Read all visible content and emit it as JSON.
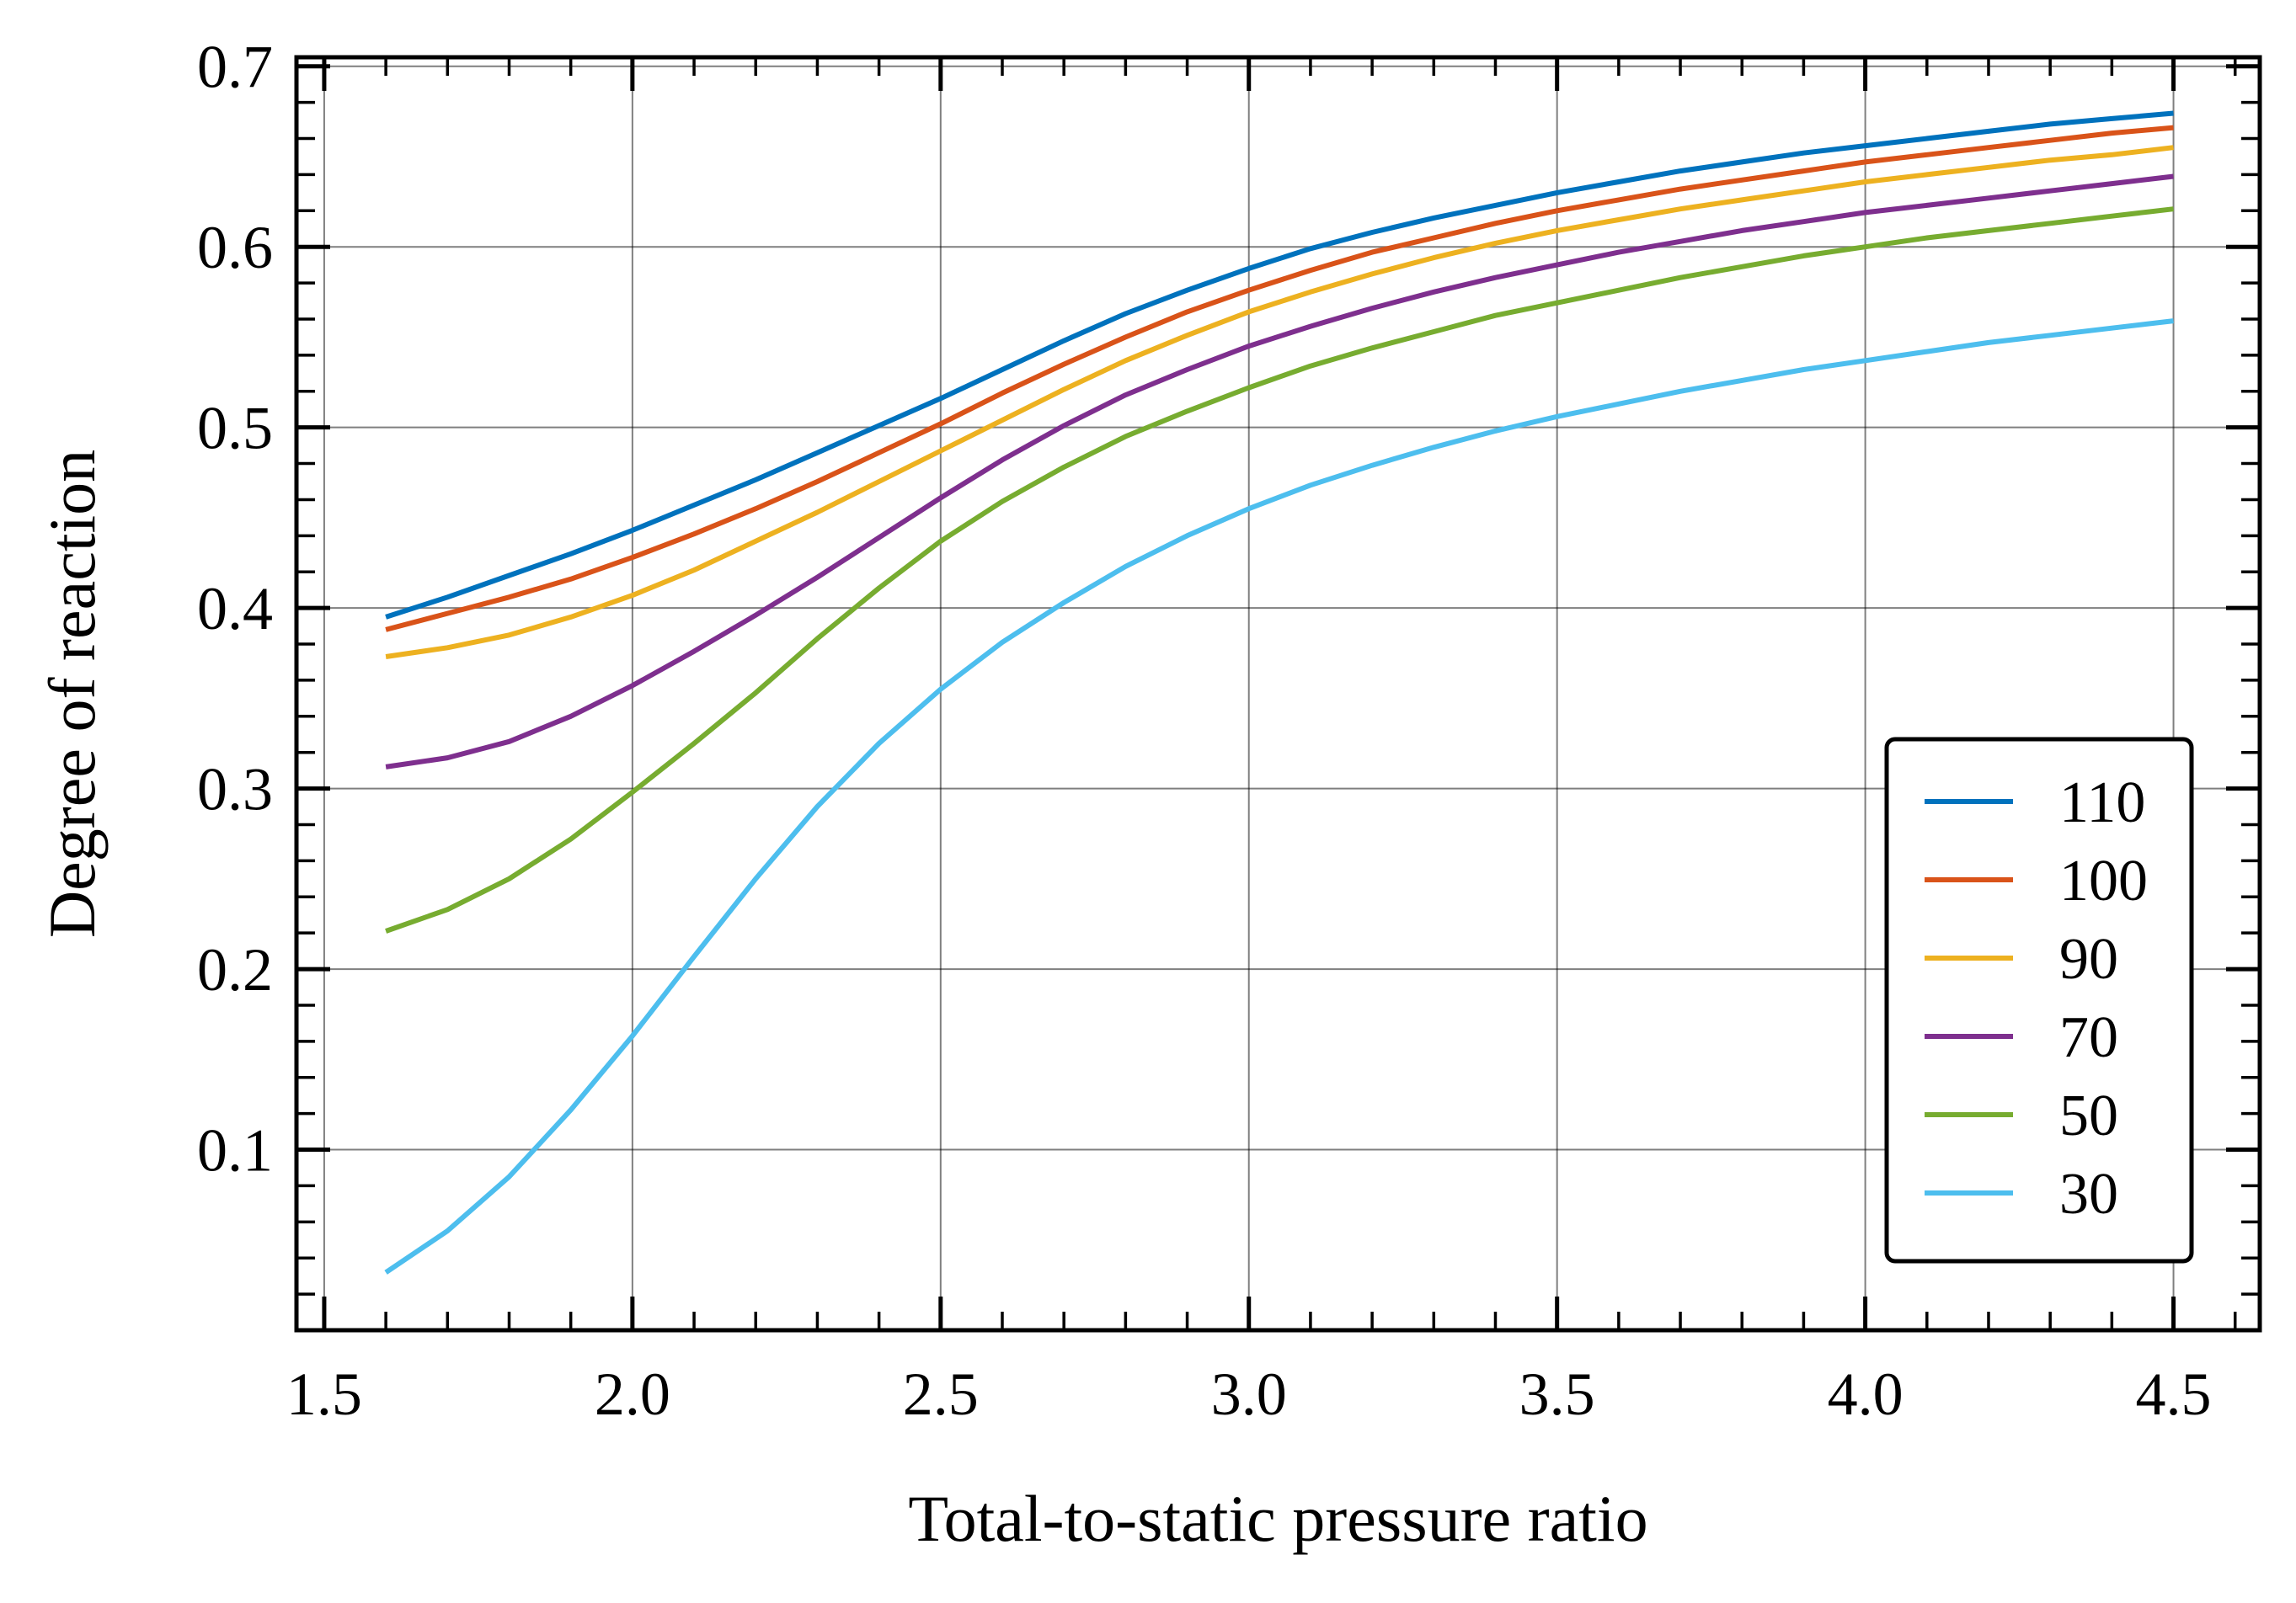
{
  "chart_data": {
    "type": "line",
    "title": "",
    "xlabel": "Total-to-static pressure ratio",
    "ylabel": "Degree of reaction",
    "xlim": [
      1.455,
      4.64
    ],
    "ylim": [
      0.0,
      0.705
    ],
    "xticks": [
      "1.5",
      "2.0",
      "2.5",
      "3.0",
      "3.5",
      "4.0",
      "4.5"
    ],
    "yticks": [
      "0.1",
      "0.2",
      "0.3",
      "0.4",
      "0.5",
      "0.6",
      "0.7"
    ],
    "grid": true,
    "legend_position": "lower-right",
    "x": [
      1.6,
      1.7,
      1.8,
      1.9,
      2.0,
      2.1,
      2.2,
      2.3,
      2.4,
      2.5,
      2.6,
      2.7,
      2.8,
      2.9,
      3.0,
      3.1,
      3.2,
      3.3,
      3.4,
      3.5,
      3.6,
      3.7,
      3.8,
      3.9,
      4.0,
      4.1,
      4.2,
      4.3,
      4.4,
      4.5
    ],
    "series": [
      {
        "name": "110",
        "color": "#0072bd",
        "values": [
          0.395,
          0.406,
          0.418,
          0.43,
          0.443,
          0.457,
          0.471,
          0.486,
          0.501,
          0.516,
          0.532,
          0.548,
          0.563,
          0.576,
          0.588,
          0.599,
          0.608,
          0.616,
          0.623,
          0.63,
          0.636,
          0.642,
          0.647,
          0.652,
          0.656,
          0.66,
          0.664,
          0.668,
          0.671,
          0.674
        ]
      },
      {
        "name": "100",
        "color": "#d95319",
        "values": [
          0.388,
          0.397,
          0.406,
          0.416,
          0.428,
          0.441,
          0.455,
          0.47,
          0.486,
          0.502,
          0.519,
          0.535,
          0.55,
          0.564,
          0.576,
          0.587,
          0.597,
          0.605,
          0.613,
          0.62,
          0.626,
          0.632,
          0.637,
          0.642,
          0.647,
          0.651,
          0.655,
          0.659,
          0.663,
          0.666
        ]
      },
      {
        "name": "90",
        "color": "#edb120",
        "values": [
          0.373,
          0.378,
          0.385,
          0.395,
          0.407,
          0.421,
          0.437,
          0.453,
          0.47,
          0.487,
          0.504,
          0.521,
          0.537,
          0.551,
          0.564,
          0.575,
          0.585,
          0.594,
          0.602,
          0.609,
          0.615,
          0.621,
          0.626,
          0.631,
          0.636,
          0.64,
          0.644,
          0.648,
          0.651,
          0.655
        ]
      },
      {
        "name": "70",
        "color": "#7e2f8e",
        "values": [
          0.312,
          0.317,
          0.326,
          0.34,
          0.357,
          0.376,
          0.396,
          0.417,
          0.439,
          0.461,
          0.482,
          0.501,
          0.518,
          0.532,
          0.545,
          0.556,
          0.566,
          0.575,
          0.583,
          0.59,
          0.597,
          0.603,
          0.609,
          0.614,
          0.619,
          0.623,
          0.627,
          0.631,
          0.635,
          0.639
        ]
      },
      {
        "name": "50",
        "color": "#77ac30",
        "values": [
          0.221,
          0.233,
          0.25,
          0.272,
          0.298,
          0.325,
          0.353,
          0.383,
          0.411,
          0.437,
          0.459,
          0.478,
          0.495,
          0.509,
          0.522,
          0.534,
          0.544,
          0.553,
          0.562,
          0.569,
          0.576,
          0.583,
          0.589,
          0.595,
          0.6,
          0.605,
          0.609,
          0.613,
          0.617,
          0.621
        ]
      },
      {
        "name": "30",
        "color": "#4dbeee",
        "values": [
          0.032,
          0.055,
          0.085,
          0.122,
          0.163,
          0.207,
          0.25,
          0.29,
          0.325,
          0.355,
          0.381,
          0.403,
          0.423,
          0.44,
          0.455,
          0.468,
          0.479,
          0.489,
          0.498,
          0.506,
          0.513,
          0.52,
          0.526,
          0.532,
          0.537,
          0.542,
          0.547,
          0.551,
          0.555,
          0.559
        ]
      }
    ]
  }
}
